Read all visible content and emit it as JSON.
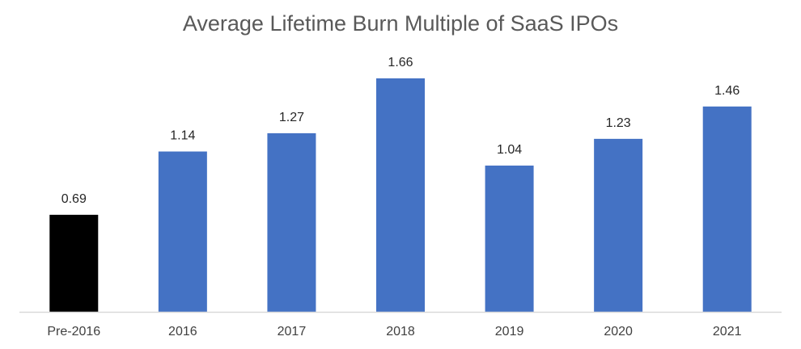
{
  "chart_data": {
    "type": "bar",
    "title": "Average Lifetime Burn Multiple of SaaS IPOs",
    "categories": [
      "Pre-2016",
      "2016",
      "2017",
      "2018",
      "2019",
      "2020",
      "2021"
    ],
    "values": [
      0.69,
      1.14,
      1.27,
      1.66,
      1.04,
      1.23,
      1.46
    ],
    "value_labels": [
      "0.69",
      "1.14",
      "1.27",
      "1.66",
      "1.04",
      "1.23",
      "1.46"
    ],
    "bar_colors": [
      "#000000",
      "#4472c4",
      "#4472c4",
      "#4472c4",
      "#4472c4",
      "#4472c4",
      "#4472c4"
    ],
    "xlabel": "",
    "ylabel": "",
    "ylim": [
      0,
      1.66
    ],
    "grid": false,
    "legend": "none"
  }
}
